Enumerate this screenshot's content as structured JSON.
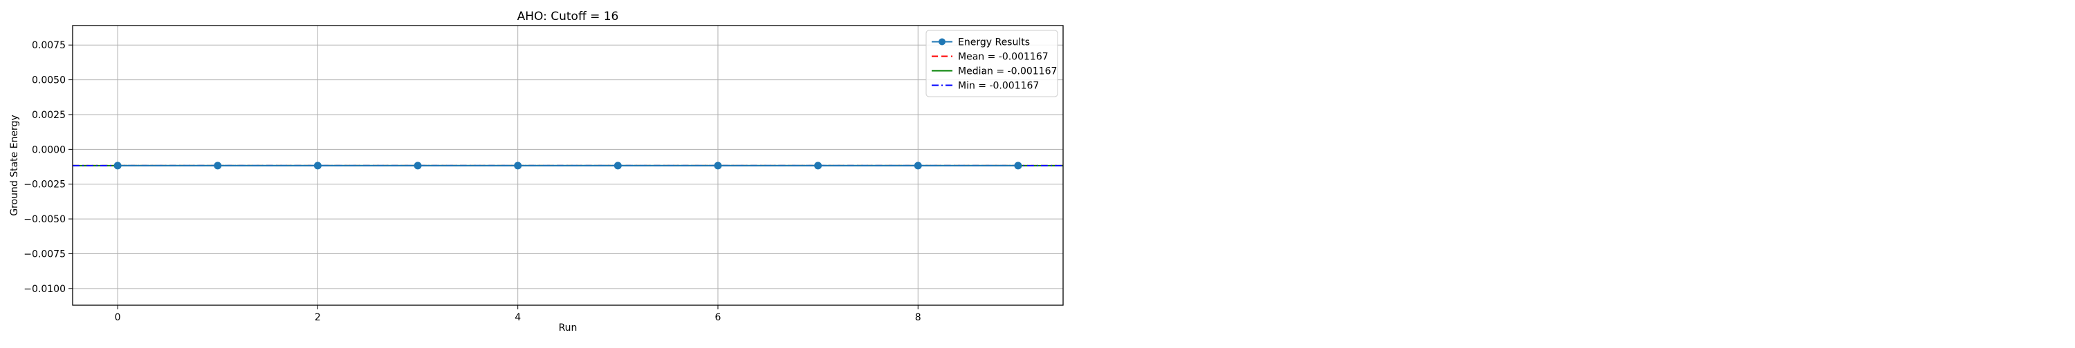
{
  "chart_data": {
    "type": "line",
    "title": "AHO: Cutoff = 16",
    "xlabel": "Run",
    "ylabel": "Ground State Energy",
    "xlim": [
      -0.45,
      9.45
    ],
    "ylim": [
      -0.0112,
      0.0089
    ],
    "xticks": [
      0,
      2,
      4,
      6,
      8
    ],
    "xtick_labels": [
      "0",
      "2",
      "4",
      "6",
      "8"
    ],
    "yticks": [
      0.0075,
      0.005,
      0.0025,
      0.0,
      -0.0025,
      -0.005,
      -0.0075,
      -0.01
    ],
    "ytick_labels": [
      "0.0075",
      "0.0050",
      "0.0025",
      "0.0000",
      "−0.0025",
      "−0.0050",
      "−0.0075",
      "−0.0100"
    ],
    "grid": true,
    "legend_position": "top-right",
    "series": [
      {
        "name": "Energy Results",
        "x": [
          0,
          1,
          2,
          3,
          4,
          5,
          6,
          7,
          8,
          9
        ],
        "y": [
          -0.001167,
          -0.001167,
          -0.001167,
          -0.001167,
          -0.001167,
          -0.001167,
          -0.001167,
          -0.001167,
          -0.001167,
          -0.001167
        ],
        "color": "#1f77b4",
        "style": "line-marker"
      }
    ],
    "reference_lines": [
      {
        "name": "Mean = -0.001167",
        "value": -0.001167,
        "color": "#ff0000",
        "style": "dashed"
      },
      {
        "name": "Median = -0.001167",
        "value": -0.001167,
        "color": "#008000",
        "style": "solid"
      },
      {
        "name": "Min = -0.001167",
        "value": -0.001167,
        "color": "#0000ff",
        "style": "dashdot"
      }
    ]
  }
}
